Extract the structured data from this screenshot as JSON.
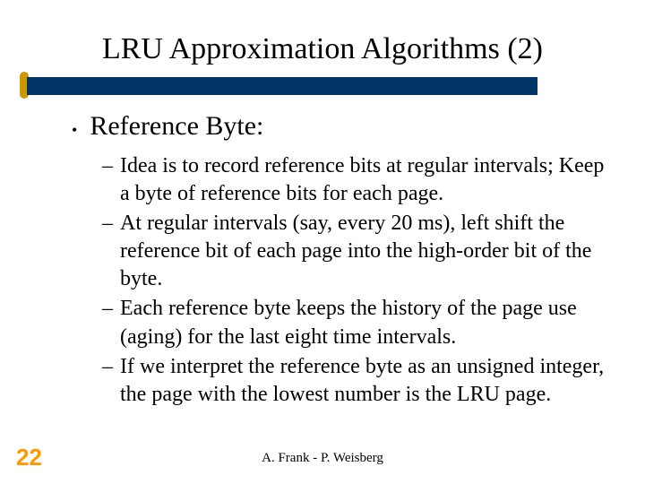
{
  "colors": {
    "title_bar": "#003366",
    "marker": "#cc9900",
    "page_number": "#ff9900",
    "text": "#000000",
    "background": "#ffffff"
  },
  "typography": {
    "body_font": "Times New Roman",
    "page_number_font": "Arial",
    "title_fontsize": 34,
    "bullet_fontsize": 30,
    "sub_fontsize": 24,
    "footer_fontsize": 15,
    "page_number_fontsize": 26
  },
  "title": "LRU Approximation Algorithms (2)",
  "bullet": {
    "text": "Reference Byte:"
  },
  "subs": [
    "Idea is to record reference bits at regular intervals; Keep a byte of reference bits for each page.",
    "At regular intervals (say, every 20 ms), left shift the reference bit of each page into the high-order bit of the byte.",
    "Each reference byte keeps the history of the page use (aging) for the last eight time intervals.",
    "If we interpret the reference byte as an unsigned integer, the page with the lowest number is the LRU page."
  ],
  "page_number": "22",
  "footer": "A. Frank - P. Weisberg"
}
